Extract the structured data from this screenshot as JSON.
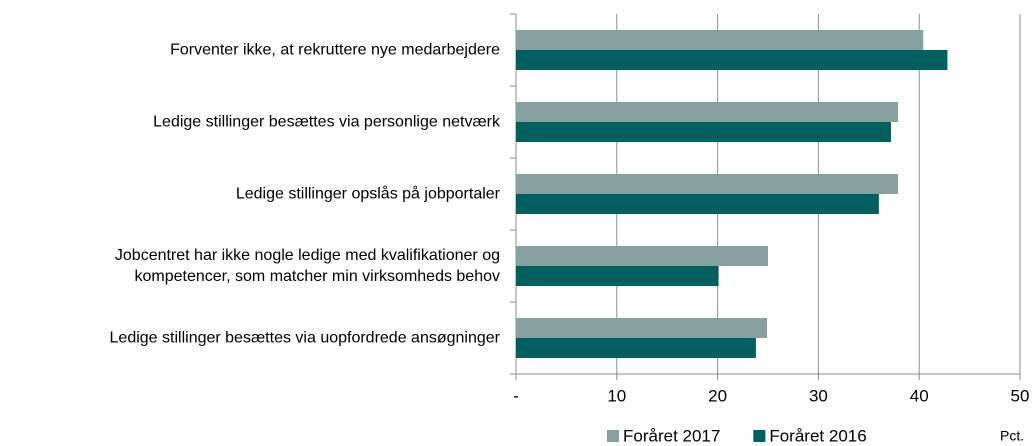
{
  "chart_data": {
    "type": "bar",
    "orientation": "horizontal",
    "categories": [
      "Forventer ikke, at rekruttere nye medarbejdere",
      "Ledige stillinger besættes via personlige netværk",
      "Ledige stillinger opslås på jobportaler",
      "Jobcentret har ikke nogle ledige med kvalifikationer og\nkompetencer, som matcher min virksomheds behov",
      "Ledige stillinger besættes via uopfordrede ansøgninger"
    ],
    "series": [
      {
        "name": "Foråret 2017",
        "color": "#87a0a0",
        "values": [
          40.4,
          37.9,
          37.9,
          25.0,
          24.9
        ]
      },
      {
        "name": "Foråret 2016",
        "color": "#00605f",
        "values": [
          42.8,
          37.2,
          36.0,
          20.1,
          23.8
        ]
      }
    ],
    "xlim": [
      0,
      50
    ],
    "xticks": [
      {
        "value": 0,
        "label": "-"
      },
      10,
      20,
      30,
      40,
      50
    ],
    "x_label": "Pct.",
    "grid": true,
    "legend": "bottom"
  }
}
